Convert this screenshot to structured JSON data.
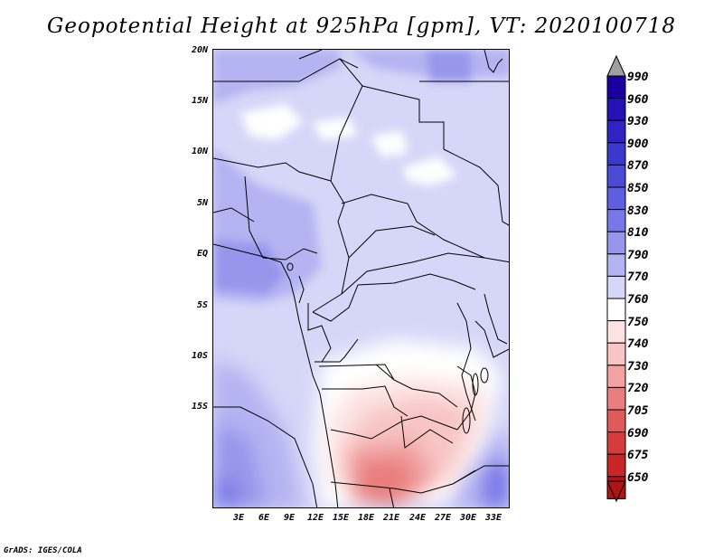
{
  "title": "Geopotential Height at 925hPa [gpm], VT: 2020100718",
  "footer": "GrADS: IGES/COLA",
  "map": {
    "lat_labels": [
      "20N",
      "15N",
      "10N",
      "5N",
      "EQ",
      "5S",
      "10S",
      "15S"
    ],
    "lon_labels": [
      "3E",
      "6E",
      "9E",
      "12E",
      "15E",
      "18E",
      "21E",
      "24E",
      "27E",
      "30E",
      "33E"
    ]
  },
  "colorbar": {
    "levels": [
      "990",
      "960",
      "930",
      "900",
      "870",
      "850",
      "830",
      "810",
      "790",
      "770",
      "760",
      "750",
      "740",
      "730",
      "720",
      "705",
      "690",
      "675",
      "650"
    ],
    "colors": [
      "#1a00a0",
      "#2412b4",
      "#2f24c2",
      "#3c38cc",
      "#4a4ad6",
      "#5e5ee0",
      "#7878e8",
      "#9696ec",
      "#b4b4f2",
      "#d6d6f8",
      "#ffffff",
      "#fde2e2",
      "#f8c4c4",
      "#f2a2a2",
      "#ea7e7e",
      "#e05a5a",
      "#d63c3c",
      "#c82626",
      "#b01414"
    ]
  }
}
